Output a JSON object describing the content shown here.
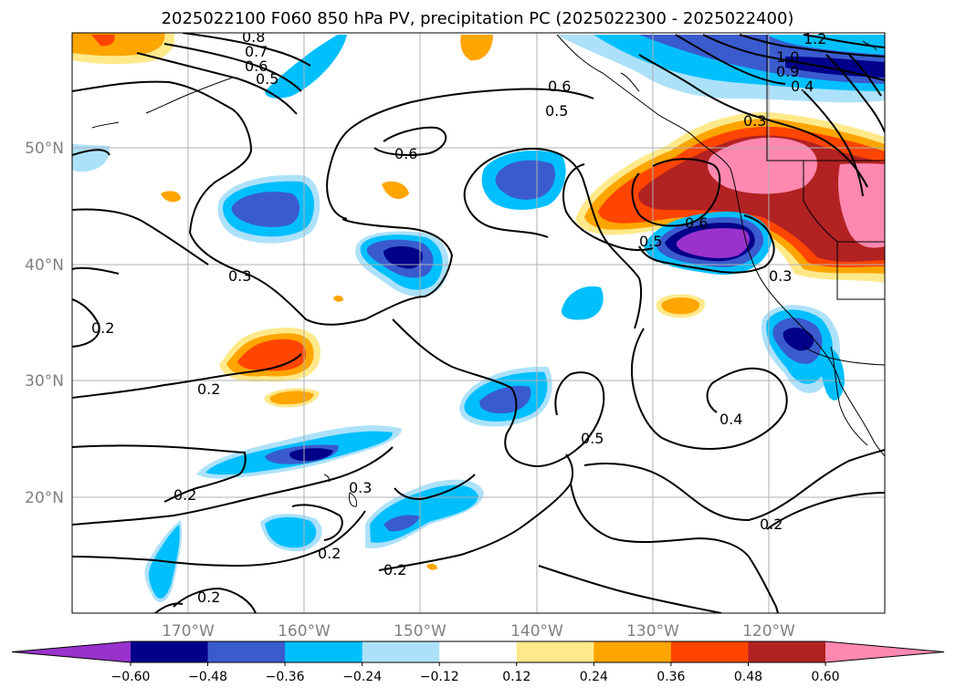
{
  "chart_data": {
    "type": "heatmap",
    "title": "2025022100 F060 850 hPa PV, precipitation PC (2025022300 - 2025022400)",
    "lat_labels": [
      "50°N",
      "40°N",
      "30°N",
      "20°N"
    ],
    "lon_labels": [
      "170°W",
      "160°W",
      "150°W",
      "140°W",
      "130°W",
      "120°W"
    ],
    "colorbar": {
      "levels": [
        -0.6,
        -0.48,
        -0.36,
        -0.24,
        -0.12,
        0.12,
        0.24,
        0.36,
        0.48,
        0.6
      ],
      "tick_labels": [
        "−0.60",
        "−0.48",
        "−0.36",
        "−0.24",
        "−0.12",
        "0.12",
        "0.24",
        "0.36",
        "0.48",
        "0.60"
      ],
      "colors": [
        "#9932CC",
        "#00008B",
        "#3A5BCE",
        "#00BFFF",
        "#ADE1FA",
        "#FFFFFF",
        "#FFE98A",
        "#FFA500",
        "#FF4500",
        "#B22222",
        "#FF88B0"
      ],
      "extend": "both"
    },
    "contour_labels": [
      "0.8",
      "0.7",
      "0.6",
      "0.5",
      "0.6",
      "0.5",
      "1.2",
      "1.0",
      "0.9",
      "0.4",
      "0.3",
      "0.6",
      "0.6",
      "0.5",
      "0.3",
      "0.3",
      "0.2",
      "0.2",
      "0.2",
      "0.3",
      "0.2",
      "0.2",
      "0.2",
      "0.5",
      "0.4",
      "0.2"
    ],
    "grid": true
  }
}
